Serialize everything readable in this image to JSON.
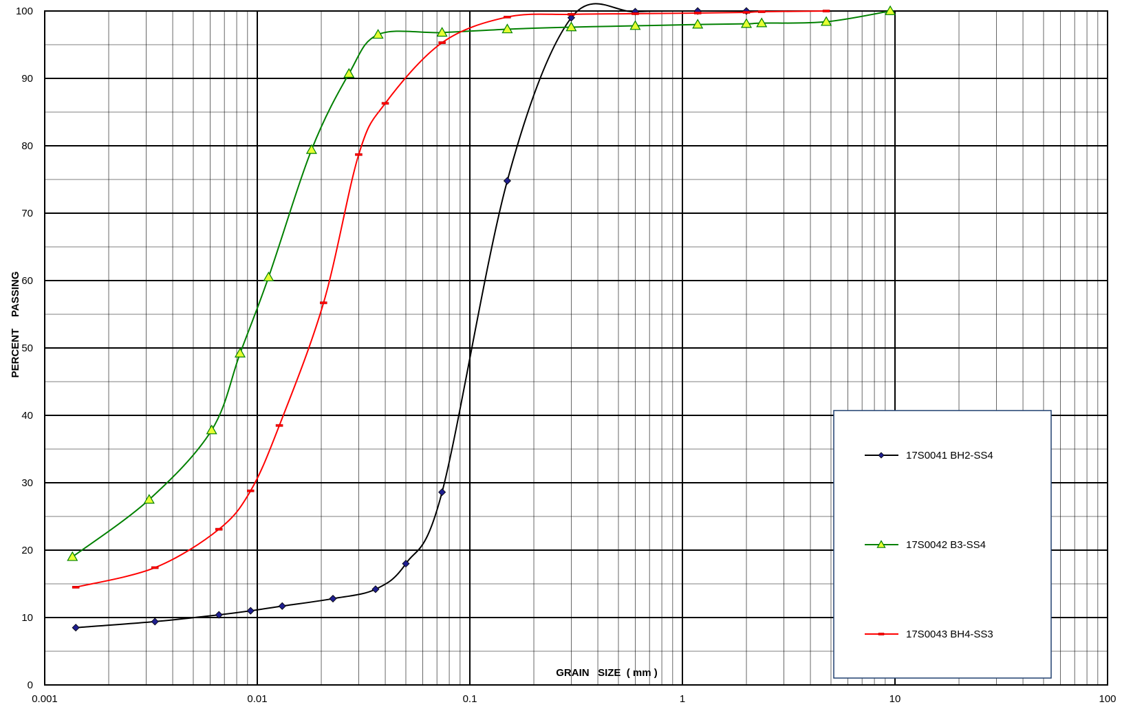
{
  "chart_data": {
    "type": "scatter",
    "x_scale": "log",
    "xlabel": "GRAIN   SIZE  ( mm )",
    "ylabel": "PERCENT    PASSING",
    "xlim": [
      0.001,
      100
    ],
    "ylim": [
      0,
      100
    ],
    "x_tick_labels": [
      "0.001",
      "0.01",
      "0.1",
      "1",
      "10",
      "100"
    ],
    "y_tick_labels": [
      "0",
      "10",
      "20",
      "30",
      "40",
      "50",
      "60",
      "70",
      "80",
      "90",
      "100"
    ],
    "grid": true,
    "legend_position": "bottom-right",
    "series": [
      {
        "name": "17S0041 BH2-SS4",
        "color": "#000000",
        "marker": "diamond",
        "marker_color": "#1f1f8f",
        "points": [
          [
            0.0014,
            8.5
          ],
          [
            0.0033,
            9.4
          ],
          [
            0.0066,
            10.4
          ],
          [
            0.0093,
            11.0
          ],
          [
            0.0131,
            11.7
          ],
          [
            0.0227,
            12.8
          ],
          [
            0.036,
            14.2
          ],
          [
            0.05,
            18.0
          ],
          [
            0.074,
            28.6
          ],
          [
            0.15,
            74.8
          ],
          [
            0.3,
            99.0
          ],
          [
            0.6,
            99.9
          ],
          [
            1.18,
            100
          ],
          [
            2.0,
            100
          ]
        ]
      },
      {
        "name": "17S0042 B3-SS4",
        "color": "#008000",
        "marker": "triangle",
        "marker_color": "#e6ff33",
        "points": [
          [
            0.00135,
            19.0
          ],
          [
            0.0031,
            27.5
          ],
          [
            0.0061,
            37.8
          ],
          [
            0.0083,
            49.2
          ],
          [
            0.0113,
            60.5
          ],
          [
            0.018,
            79.4
          ],
          [
            0.027,
            90.7
          ],
          [
            0.037,
            96.5
          ],
          [
            0.074,
            96.8
          ],
          [
            0.15,
            97.3
          ],
          [
            0.3,
            97.6
          ],
          [
            0.6,
            97.8
          ],
          [
            1.18,
            98.0
          ],
          [
            2.0,
            98.1
          ],
          [
            2.36,
            98.2
          ],
          [
            4.75,
            98.4
          ],
          [
            9.5,
            100
          ]
        ]
      },
      {
        "name": "17S0043 BH4-SS3",
        "color": "#ff0000",
        "marker": "dash",
        "marker_color": "#ff0000",
        "points": [
          [
            0.0014,
            14.5
          ],
          [
            0.0033,
            17.4
          ],
          [
            0.0066,
            23.1
          ],
          [
            0.0093,
            28.8
          ],
          [
            0.0127,
            38.5
          ],
          [
            0.0205,
            56.7
          ],
          [
            0.03,
            78.7
          ],
          [
            0.04,
            86.3
          ],
          [
            0.074,
            95.3
          ],
          [
            0.15,
            99.1
          ],
          [
            0.3,
            99.5
          ],
          [
            0.6,
            99.6
          ],
          [
            1.18,
            99.7
          ],
          [
            2.0,
            99.8
          ],
          [
            2.36,
            99.9
          ],
          [
            4.75,
            100
          ]
        ]
      }
    ]
  }
}
